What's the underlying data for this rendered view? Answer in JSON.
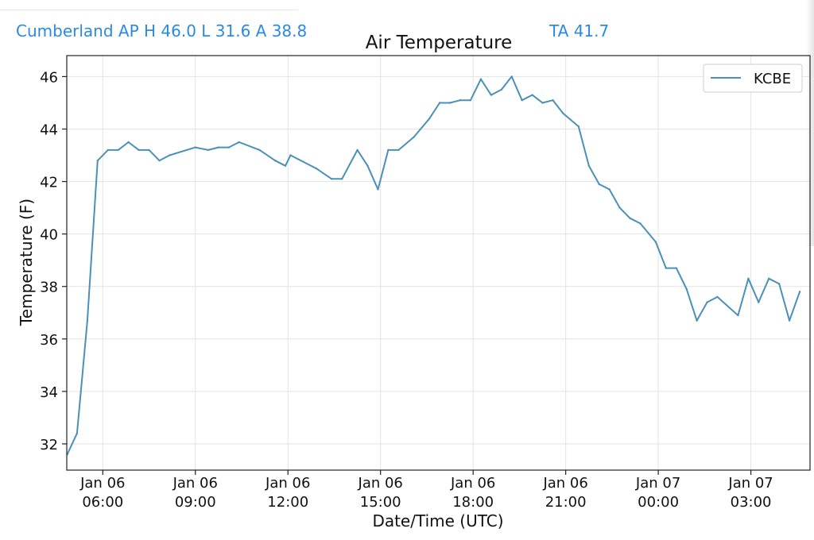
{
  "header": {
    "station_stats": "Cumberland AP H 46.0 L 31.6 A 38.8",
    "ta": "TA 41.7"
  },
  "colors": {
    "header_text": "#2b8ae0",
    "series_line": "#4a90b8",
    "grid": "#e3e3e3",
    "axis": "#222222"
  },
  "chart_data": {
    "type": "line",
    "title": "Air Temperature",
    "xlabel": "Date/Time (UTC)",
    "ylabel": "Temperature (F)",
    "xlim": [
      "2020-01-06 04:50",
      "2020-01-07 04:55"
    ],
    "ylim": [
      31,
      46.8
    ],
    "yticks": [
      32,
      34,
      36,
      38,
      40,
      42,
      44,
      46
    ],
    "xticks": [
      {
        "t": "2020-01-06 06:00",
        "line1": "Jan 06",
        "line2": "06:00"
      },
      {
        "t": "2020-01-06 09:00",
        "line1": "Jan 06",
        "line2": "09:00"
      },
      {
        "t": "2020-01-06 12:00",
        "line1": "Jan 06",
        "line2": "12:00"
      },
      {
        "t": "2020-01-06 15:00",
        "line1": "Jan 06",
        "line2": "15:00"
      },
      {
        "t": "2020-01-06 18:00",
        "line1": "Jan 06",
        "line2": "18:00"
      },
      {
        "t": "2020-01-06 21:00",
        "line1": "Jan 06",
        "line2": "21:00"
      },
      {
        "t": "2020-01-07 00:00",
        "line1": "Jan 07",
        "line2": "00:00"
      },
      {
        "t": "2020-01-07 03:00",
        "line1": "Jan 07",
        "line2": "03:00"
      }
    ],
    "grid": true,
    "legend": {
      "placement": "top-right"
    },
    "series": [
      {
        "name": "KCBE",
        "x": [
          "2020-01-06 04:51",
          "2020-01-06 05:10",
          "2020-01-06 05:30",
          "2020-01-06 05:50",
          "2020-01-06 06:10",
          "2020-01-06 06:30",
          "2020-01-06 06:50",
          "2020-01-06 07:10",
          "2020-01-06 07:30",
          "2020-01-06 07:50",
          "2020-01-06 08:10",
          "2020-01-06 09:00",
          "2020-01-06 09:25",
          "2020-01-06 09:45",
          "2020-01-06 10:05",
          "2020-01-06 10:25",
          "2020-01-06 11:05",
          "2020-01-06 11:35",
          "2020-01-06 11:55",
          "2020-01-06 12:05",
          "2020-01-06 12:55",
          "2020-01-06 13:25",
          "2020-01-06 13:45",
          "2020-01-06 14:15",
          "2020-01-06 14:35",
          "2020-01-06 14:55",
          "2020-01-06 15:15",
          "2020-01-06 15:35",
          "2020-01-06 16:05",
          "2020-01-06 16:35",
          "2020-01-06 16:55",
          "2020-01-06 17:15",
          "2020-01-06 17:35",
          "2020-01-06 17:55",
          "2020-01-06 18:15",
          "2020-01-06 18:35",
          "2020-01-06 18:55",
          "2020-01-06 19:15",
          "2020-01-06 19:35",
          "2020-01-06 19:55",
          "2020-01-06 20:15",
          "2020-01-06 20:35",
          "2020-01-06 20:55",
          "2020-01-06 21:25",
          "2020-01-06 21:45",
          "2020-01-06 22:05",
          "2020-01-06 22:25",
          "2020-01-06 22:45",
          "2020-01-06 23:05",
          "2020-01-06 23:25",
          "2020-01-06 23:55",
          "2020-01-07 00:15",
          "2020-01-07 00:35",
          "2020-01-07 00:55",
          "2020-01-07 01:15",
          "2020-01-07 01:35",
          "2020-01-07 01:55",
          "2020-01-07 02:35",
          "2020-01-07 02:55",
          "2020-01-07 03:15",
          "2020-01-07 03:35",
          "2020-01-07 03:55",
          "2020-01-07 04:15",
          "2020-01-07 04:35"
        ],
        "y": [
          31.6,
          32.4,
          36.7,
          42.8,
          43.2,
          43.2,
          43.5,
          43.2,
          43.2,
          42.8,
          43.0,
          43.3,
          43.2,
          43.3,
          43.3,
          43.5,
          43.2,
          42.8,
          42.6,
          43.0,
          42.5,
          42.1,
          42.1,
          43.2,
          42.6,
          41.7,
          43.2,
          43.2,
          43.7,
          44.4,
          45.0,
          45.0,
          45.1,
          45.1,
          45.9,
          45.3,
          45.5,
          46.0,
          45.1,
          45.3,
          45.0,
          45.1,
          44.6,
          44.1,
          42.6,
          41.9,
          41.7,
          41.0,
          40.6,
          40.4,
          39.7,
          38.7,
          38.7,
          37.9,
          36.7,
          37.4,
          37.6,
          36.9,
          38.3,
          37.4,
          38.3,
          38.1,
          36.7,
          37.8
        ]
      }
    ]
  }
}
